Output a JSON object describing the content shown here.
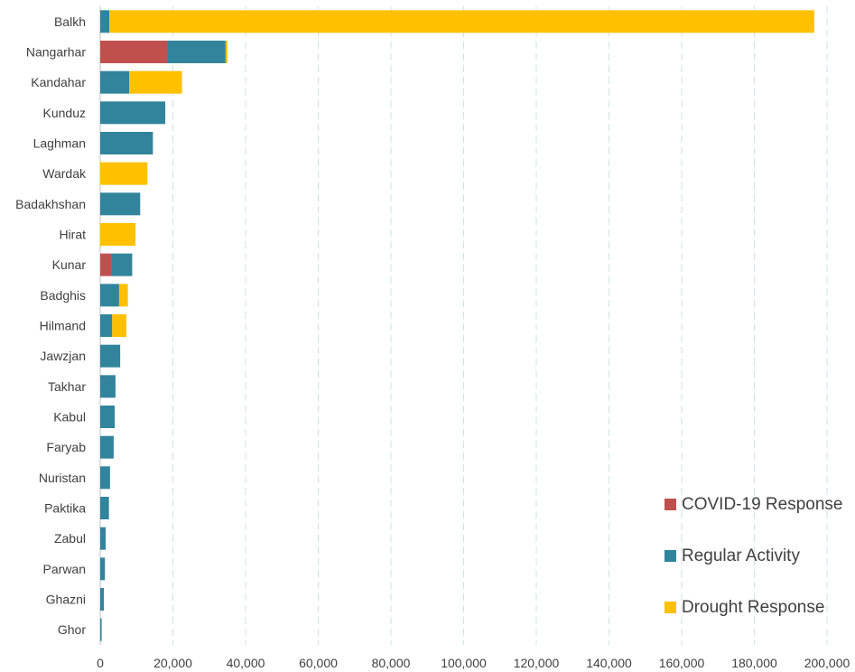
{
  "chart_data": {
    "type": "bar",
    "orientation": "horizontal",
    "stacked": true,
    "categories": [
      "Balkh",
      "Nangarhar",
      "Kandahar",
      "Kunduz",
      "Laghman",
      "Wardak",
      "Badakhshan",
      "Hirat",
      "Kunar",
      "Badghis",
      "Hilmand",
      "Jawzjan",
      "Takhar",
      "Kabul",
      "Faryab",
      "Nuristan",
      "Paktika",
      "Zabul",
      "Parwan",
      "Ghazni",
      "Ghor"
    ],
    "series": [
      {
        "name": "COVID-19 Response",
        "color": "#c0504d",
        "values": [
          0,
          18500,
          0,
          0,
          0,
          0,
          0,
          0,
          3000,
          0,
          0,
          0,
          0,
          0,
          0,
          0,
          0,
          0,
          0,
          0,
          0
        ]
      },
      {
        "name": "Regular Activity",
        "color": "#31849b",
        "values": [
          2500,
          16000,
          8000,
          17900,
          14500,
          0,
          11000,
          0,
          5800,
          5200,
          3300,
          5500,
          4200,
          4000,
          3700,
          2700,
          2400,
          1500,
          1300,
          1000,
          400
        ]
      },
      {
        "name": "Drought Response",
        "color": "#ffc000",
        "values": [
          194000,
          500,
          14500,
          0,
          0,
          13000,
          0,
          9700,
          0,
          2400,
          3900,
          0,
          0,
          0,
          0,
          0,
          0,
          0,
          0,
          0,
          0
        ]
      }
    ],
    "x_ticks": [
      "0",
      "20,000",
      "40,000",
      "60,000",
      "80,000",
      "100,000",
      "120,000",
      "140,000",
      "160,000",
      "180,000",
      "200,000"
    ],
    "xlim": [
      0,
      200000
    ],
    "grid": "vertical dashed",
    "legend_position": "bottom-right"
  }
}
